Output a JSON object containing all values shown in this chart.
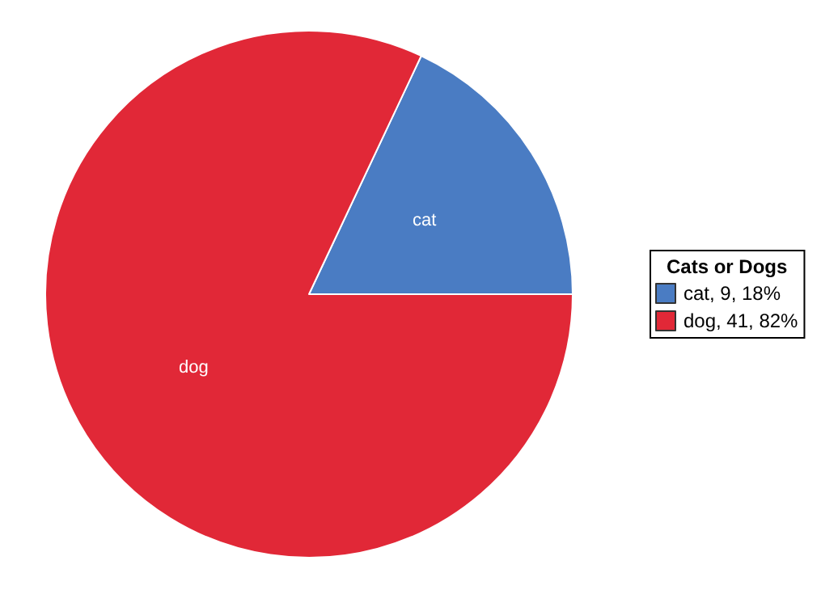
{
  "chart_data": {
    "type": "pie",
    "legend_title": "Cats or Dogs",
    "categories": [
      "cat",
      "dog"
    ],
    "values": [
      9,
      41
    ],
    "value_labels": [
      ", 9, 18%",
      ", 41, 82%"
    ],
    "colors": [
      "#4a7cc3",
      "#e12837"
    ],
    "legend": "right"
  }
}
